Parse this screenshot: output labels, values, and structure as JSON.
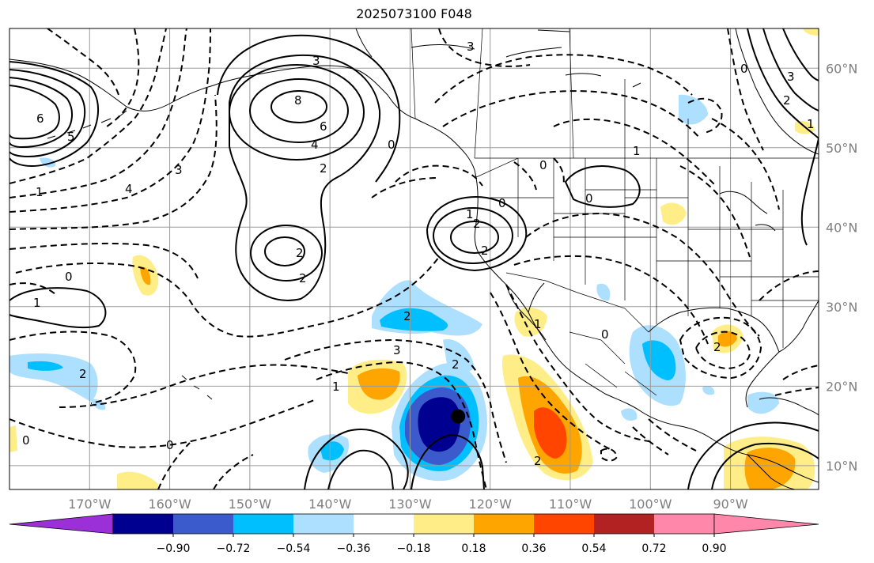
{
  "title": "2025073100 F048",
  "map": {
    "lon_range": [
      -180,
      -79
    ],
    "lat_range": [
      7,
      65
    ],
    "lat_ticks": [
      {
        "value": 60,
        "label": "60°N"
      },
      {
        "value": 50,
        "label": "50°N"
      },
      {
        "value": 40,
        "label": "40°N"
      },
      {
        "value": 30,
        "label": "30°N"
      },
      {
        "value": 20,
        "label": "20°N"
      },
      {
        "value": 10,
        "label": "10°N"
      }
    ],
    "lon_ticks": [
      {
        "value": -170,
        "label": "170°W"
      },
      {
        "value": -160,
        "label": "160°W"
      },
      {
        "value": -150,
        "label": "150°W"
      },
      {
        "value": -140,
        "label": "140°W"
      },
      {
        "value": -130,
        "label": "130°W"
      },
      {
        "value": -120,
        "label": "120°W"
      },
      {
        "value": -110,
        "label": "110°W"
      },
      {
        "value": -100,
        "label": "100°W"
      },
      {
        "value": -90,
        "label": "90°W"
      }
    ],
    "grid": true,
    "marker": {
      "lon": -124,
      "lat": 16.2
    }
  },
  "colorbar": {
    "labels": [
      "−0.90",
      "−0.72",
      "−0.54",
      "−0.36",
      "−0.18",
      "0.18",
      "0.36",
      "0.54",
      "0.72",
      "0.90"
    ],
    "colors": {
      "under": "#9b30d9",
      "bins": [
        "#000090",
        "#3b5bcc",
        "#00bfff",
        "#addfff",
        "#ffffff",
        "#ffee88",
        "#ffa500",
        "#ff4500",
        "#b22222",
        "#ff88aa"
      ],
      "over": "#ff88aa"
    }
  },
  "contour_labels": [
    "3",
    "8",
    "6",
    "4",
    "2",
    "2",
    "0",
    "1",
    "2",
    "2",
    "0",
    "0",
    "1",
    "2",
    "0",
    "3",
    "2",
    "2",
    "3",
    "4",
    "5",
    "6",
    "0",
    "1",
    "2",
    "0",
    "0",
    "1",
    "2",
    "1",
    "2",
    "3",
    "0",
    "1",
    "0",
    "1",
    "2",
    "3"
  ]
}
